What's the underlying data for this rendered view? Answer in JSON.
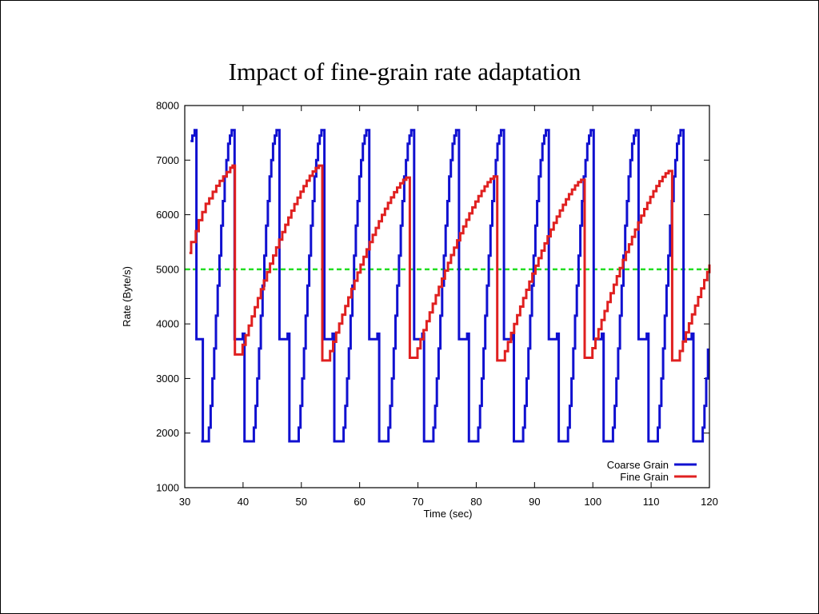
{
  "slide": {
    "title": "Impact of fine-grain rate adaptation"
  },
  "chart_data": {
    "type": "line",
    "title": "",
    "xlabel": "Time (sec)",
    "ylabel": "Rate (Byte/s)",
    "xlim": [
      30,
      120
    ],
    "ylim": [
      1000,
      8000
    ],
    "x_ticks": [
      30,
      40,
      50,
      60,
      70,
      80,
      90,
      100,
      110,
      120
    ],
    "y_ticks": [
      1000,
      2000,
      3000,
      4000,
      5000,
      6000,
      7000,
      8000
    ],
    "legend_position": "bottom-right",
    "reference_line": {
      "y": 5000,
      "color": "#22dd22",
      "style": "dashed"
    },
    "series": [
      {
        "name": "Coarse Grain",
        "color": "#1010d0",
        "step": true,
        "period_sec": 7.7,
        "cycle_starts": [
          32.8,
          40.5,
          48.2,
          55.9,
          63.6,
          71.3,
          79.0,
          86.7,
          94.4,
          102.1,
          109.8,
          117.5
        ],
        "points": [
          [
            31.0,
            7350
          ],
          [
            31.3,
            7450
          ],
          [
            31.7,
            7550
          ],
          [
            31.9,
            7550
          ],
          [
            32.0,
            3720
          ],
          [
            33.0,
            3720
          ],
          [
            33.1,
            1850
          ]
        ],
        "cycle_shape": [
          [
            0.0,
            1850
          ],
          [
            1.05,
            1850
          ],
          [
            1.35,
            2100
          ],
          [
            1.65,
            2500
          ],
          [
            1.95,
            3000
          ],
          [
            2.25,
            3550
          ],
          [
            2.55,
            4150
          ],
          [
            2.85,
            4700
          ],
          [
            3.15,
            5250
          ],
          [
            3.45,
            5800
          ],
          [
            3.75,
            6250
          ],
          [
            4.05,
            6700
          ],
          [
            4.35,
            7000
          ],
          [
            4.65,
            7300
          ],
          [
            4.95,
            7450
          ],
          [
            5.25,
            7550
          ],
          [
            5.7,
            7550
          ],
          [
            5.75,
            3720
          ],
          [
            7.05,
            3720
          ],
          [
            7.15,
            3820
          ],
          [
            7.4,
            3820
          ],
          [
            7.45,
            1850
          ]
        ]
      },
      {
        "name": "Fine Grain",
        "color": "#e02020",
        "step": true,
        "period_sec": 15.0,
        "cycle_starts": [
          38.6,
          53.6,
          68.6,
          83.6,
          98.6,
          113.6
        ],
        "cycle_lows": [
          3440,
          3330,
          3380,
          3330,
          3380,
          3330
        ],
        "cycle_peaks": [
          6900,
          6680,
          6700,
          6640,
          6800,
          6700
        ],
        "points": [
          [
            30.8,
            5300
          ],
          [
            31.1,
            5500
          ],
          [
            31.9,
            5700
          ],
          [
            32.4,
            5900
          ],
          [
            33.0,
            6050
          ],
          [
            33.6,
            6200
          ],
          [
            34.2,
            6300
          ],
          [
            34.8,
            6420
          ],
          [
            35.4,
            6530
          ],
          [
            36.0,
            6620
          ],
          [
            36.6,
            6700
          ],
          [
            37.2,
            6780
          ],
          [
            37.8,
            6860
          ],
          [
            38.2,
            6900
          ],
          [
            38.6,
            6900
          ]
        ],
        "final_value": 5090
      }
    ]
  }
}
